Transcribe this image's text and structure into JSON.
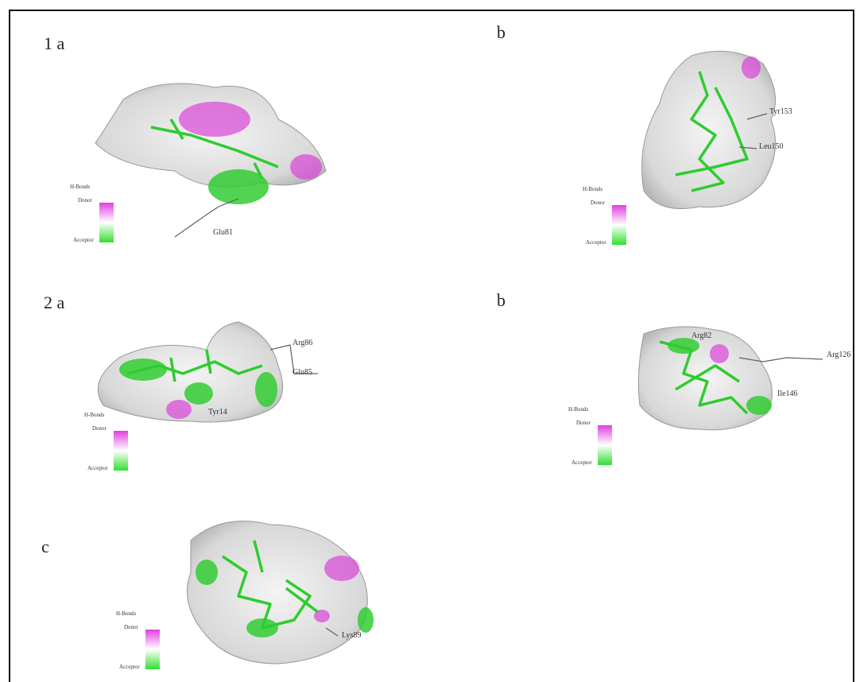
{
  "panels": [
    {
      "label": "1 a",
      "legend": {
        "title": "H-Bonds",
        "donor": "Donor",
        "acceptor": "Acceptor"
      },
      "residues": [
        "Glu81"
      ]
    },
    {
      "label": "b",
      "legend": {
        "title": "H-Bonds",
        "donor": "Donor",
        "acceptor": "Acceptor"
      },
      "residues": [
        "Tyr153",
        "Leu150"
      ]
    },
    {
      "label": "2 a",
      "legend": {
        "title": "H-Bonds",
        "donor": "Donor",
        "acceptor": "Acceptor"
      },
      "residues": [
        "Arg86",
        "Glu85",
        "Tyr14"
      ]
    },
    {
      "label": "b",
      "legend": {
        "title": "H-Bonds",
        "donor": "Donor",
        "acceptor": "Acceptor"
      },
      "residues": [
        "Arg82",
        "Arg126",
        "Ile146"
      ]
    },
    {
      "label": "c",
      "legend": {
        "title": "H-Bonds",
        "donor": "Donor",
        "acceptor": "Acceptor"
      },
      "residues": [
        "Lys89"
      ]
    }
  ]
}
